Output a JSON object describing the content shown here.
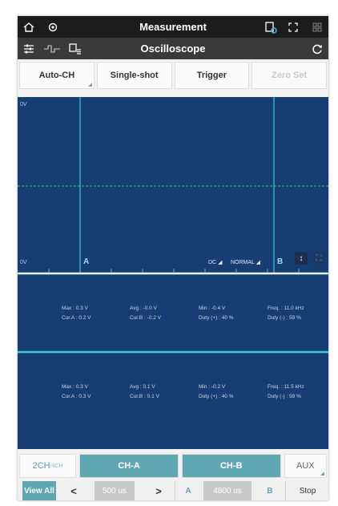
{
  "header": {
    "title": "Measurement"
  },
  "subheader": {
    "title": "Oscilloscope"
  },
  "modes": [
    {
      "label": "Auto-CH"
    },
    {
      "label": "Single-shot"
    },
    {
      "label": "Trigger"
    },
    {
      "label": "Zero Set"
    }
  ],
  "scope": {
    "upper_scale": "0V",
    "lower_scale": "0V",
    "cursor_a": "A",
    "cursor_b": "B",
    "coupling": "DC",
    "trigger_mode": "NORMAL",
    "channel1": {
      "max": "Max : 0.3 V",
      "avg": "Avg : -0.0 V",
      "min": "Min : -0.4 V",
      "freq": "Freq. : 11.0 kHz",
      "cur_a": "Cur.A : 0.2 V",
      "cur_b": "Cur.B : -0.2 V",
      "duty_pos": "Duty (+) : 40 %",
      "duty_neg": "Duty (-) : 59 %"
    },
    "channel2": {
      "max": "Max : 0.3 V",
      "avg": "Avg : 0.1 V",
      "min": "Min : -0.2 V",
      "freq": "Freq. : 11.5 kHz",
      "cur_a": "Cur.A : 0.3 V",
      "cur_b": "Cur.B : 0.1 V",
      "duty_pos": "Duty (+) : 40 %",
      "duty_neg": "Duty (-) : 59 %"
    }
  },
  "channels": {
    "mode_main": "2CH",
    "mode_sub": "/4CH",
    "ch_a": "CH-A",
    "ch_b": "CH-B",
    "aux": "AUX"
  },
  "bottom": {
    "view_all": "View All",
    "prev": "<",
    "timebase": "500 us",
    "next": ">",
    "a_label": "A",
    "delta": "4800 us",
    "b_label": "B",
    "stop": "Stop"
  },
  "colors": {
    "scope_bg": "#163e73",
    "cursor": "#3fc6d8",
    "trace": "#38a862",
    "accent": "#5fa8b2"
  }
}
